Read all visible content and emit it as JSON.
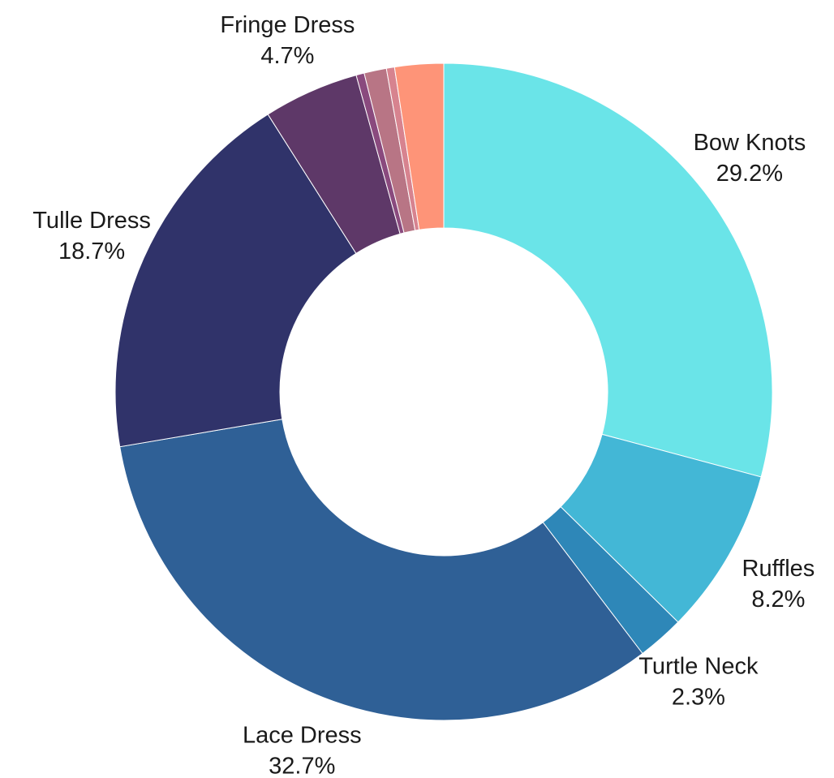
{
  "chart_data": {
    "type": "pie",
    "donut": true,
    "title": "",
    "start_angle_deg": 0,
    "direction": "clockwise",
    "slices": [
      {
        "label": "Bow Knots",
        "value": 29.2,
        "value_label": "29.2%",
        "color": "#6AE4E8",
        "show_label": true
      },
      {
        "label": "Ruffles",
        "value": 8.2,
        "value_label": "8.2%",
        "color": "#43B7D6",
        "show_label": true
      },
      {
        "label": "Turtle Neck",
        "value": 2.3,
        "value_label": "2.3%",
        "color": "#2E87B8",
        "show_label": true
      },
      {
        "label": "Lace Dress",
        "value": 32.7,
        "value_label": "32.7%",
        "color": "#2F6096",
        "show_label": true
      },
      {
        "label": "Tulle Dress",
        "value": 18.7,
        "value_label": "18.7%",
        "color": "#30336A",
        "show_label": true
      },
      {
        "label": "Fringe Dress",
        "value": 4.7,
        "value_label": "4.7%",
        "color": "#5E3868",
        "show_label": true
      },
      {
        "label": "",
        "value": 0.4,
        "value_label": "",
        "color": "#8A4A7E",
        "show_label": false
      },
      {
        "label": "",
        "value": 1.1,
        "value_label": "",
        "color": "#B87585",
        "show_label": false
      },
      {
        "label": "",
        "value": 0.4,
        "value_label": "",
        "color": "#D7838F",
        "show_label": false
      },
      {
        "label": "",
        "value": 2.4,
        "value_label": "",
        "color": "#FE9478",
        "show_label": false
      }
    ]
  }
}
